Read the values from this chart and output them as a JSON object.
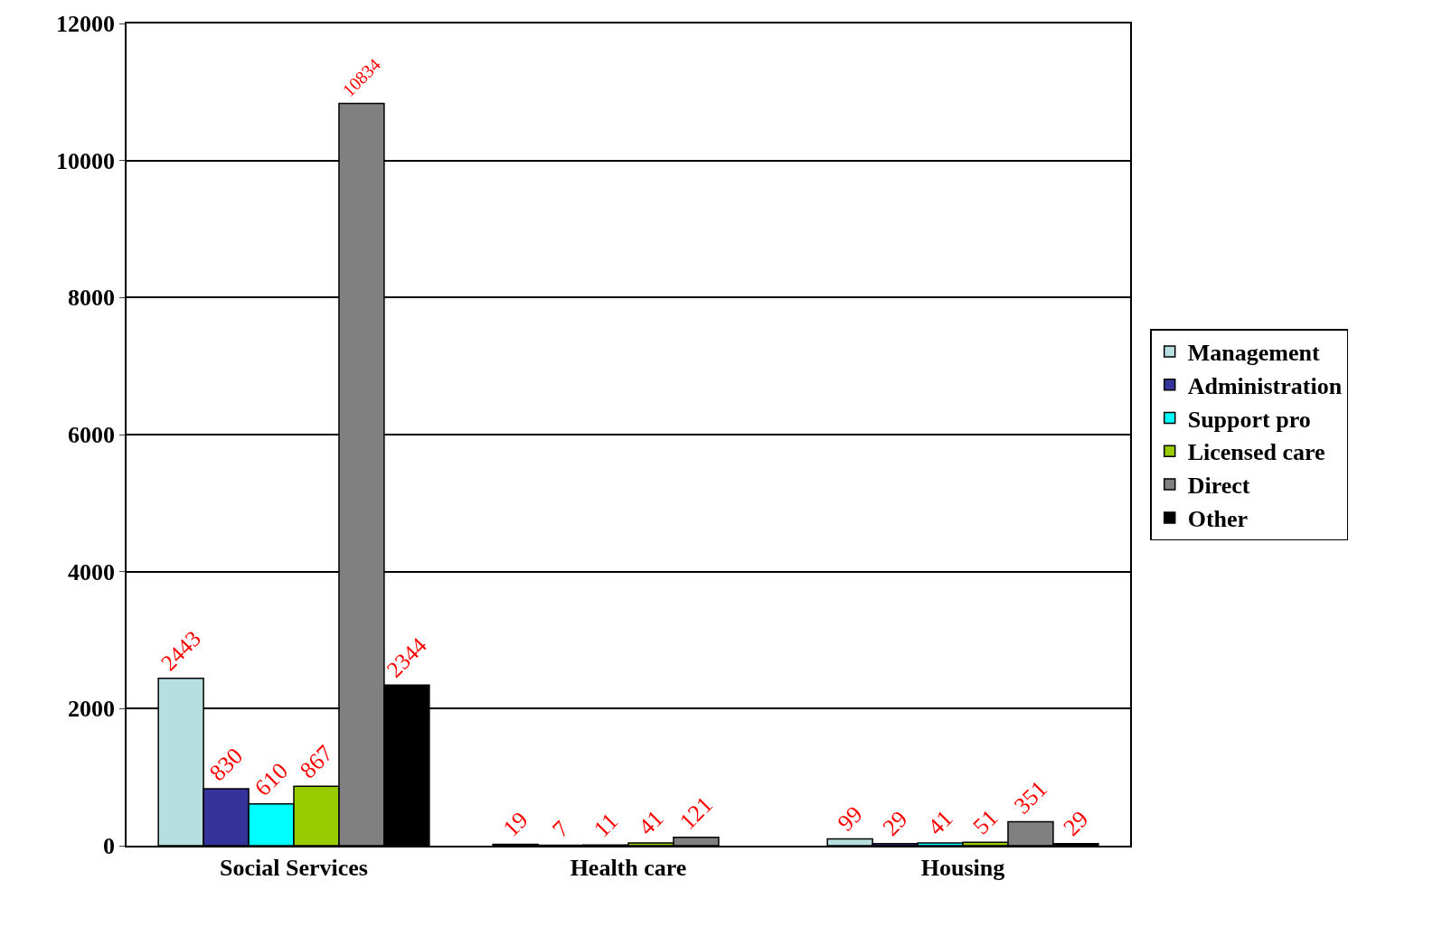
{
  "chart_data": {
    "type": "bar",
    "categories": [
      "Social Services",
      "Health care",
      "Housing"
    ],
    "series": [
      {
        "name": "Management",
        "color": "#b8dfe0",
        "values": [
          2443,
          19,
          99
        ],
        "value_labels": [
          "2443",
          "19",
          "99"
        ]
      },
      {
        "name": "Administration",
        "color": "#333399",
        "values": [
          830,
          7,
          29
        ],
        "value_labels": [
          "830",
          "7",
          "29"
        ]
      },
      {
        "name": "Support pro",
        "color": "#00ffff",
        "values": [
          610,
          11,
          41
        ],
        "value_labels": [
          "610",
          "11",
          "41"
        ]
      },
      {
        "name": "Licensed care",
        "color": "#99cc00",
        "values": [
          867,
          41,
          51
        ],
        "value_labels": [
          "867",
          "41",
          "51"
        ]
      },
      {
        "name": "Direct",
        "color": "#808080",
        "values": [
          10834,
          121,
          351
        ],
        "value_labels": [
          "10834",
          "121",
          "351"
        ]
      },
      {
        "name": "Other",
        "color": "#000000",
        "values": [
          2344,
          null,
          29
        ],
        "value_labels": [
          "2344",
          null,
          "29"
        ]
      }
    ],
    "ylim": [
      0,
      12000
    ],
    "yticks": [
      0,
      2000,
      4000,
      6000,
      8000,
      10000,
      12000
    ],
    "grid": "y",
    "legend": "right"
  }
}
